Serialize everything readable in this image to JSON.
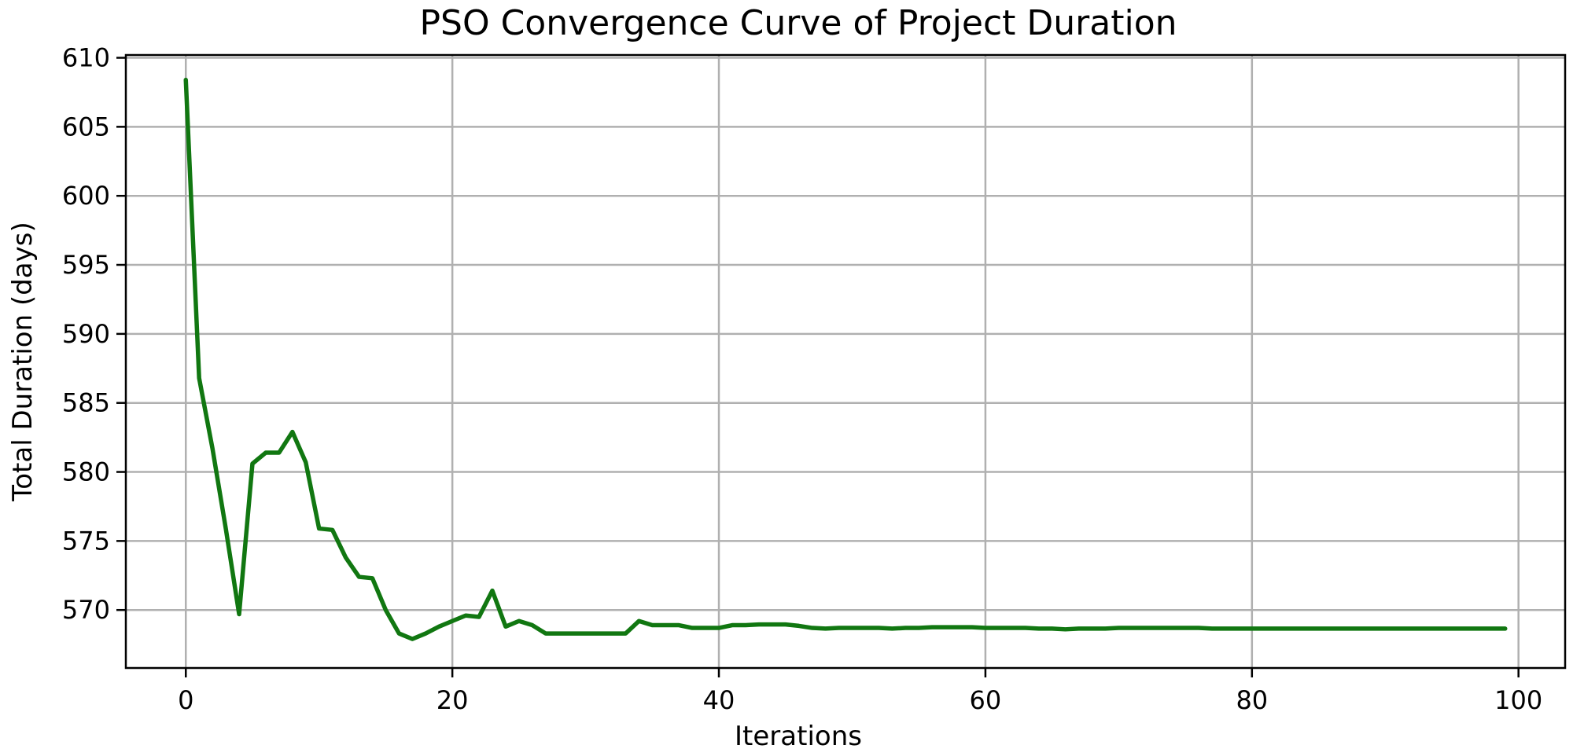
{
  "chart_data": {
    "type": "line",
    "title": "PSO Convergence Curve of Project Duration",
    "xlabel": "Iterations",
    "ylabel": "Total Duration (days)",
    "xlim": [
      -4.5,
      103.5
    ],
    "ylim": [
      565.8,
      610.2
    ],
    "xticks": [
      0,
      20,
      40,
      60,
      80,
      100
    ],
    "yticks": [
      570,
      575,
      580,
      585,
      590,
      595,
      600,
      605,
      610
    ],
    "grid": true,
    "line_color": "#117711",
    "x": [
      0,
      1,
      2,
      3,
      4,
      5,
      6,
      7,
      8,
      9,
      10,
      11,
      12,
      13,
      14,
      15,
      16,
      17,
      18,
      19,
      20,
      21,
      22,
      23,
      24,
      25,
      26,
      27,
      28,
      29,
      30,
      31,
      32,
      33,
      34,
      35,
      36,
      37,
      38,
      39,
      40,
      41,
      42,
      43,
      44,
      45,
      46,
      47,
      48,
      49,
      50,
      51,
      52,
      53,
      54,
      55,
      56,
      57,
      58,
      59,
      60,
      61,
      62,
      63,
      64,
      65,
      66,
      67,
      68,
      69,
      70,
      71,
      72,
      73,
      74,
      75,
      76,
      77,
      78,
      79,
      80,
      81,
      82,
      83,
      84,
      85,
      86,
      87,
      88,
      89,
      90,
      91,
      92,
      93,
      94,
      95,
      96,
      97,
      98,
      99
    ],
    "y": [
      608.4,
      586.8,
      581.7,
      575.9,
      569.7,
      580.6,
      581.4,
      581.4,
      582.9,
      580.7,
      575.9,
      575.8,
      573.8,
      572.4,
      572.3,
      570.0,
      568.3,
      567.9,
      568.3,
      568.8,
      569.2,
      569.6,
      569.5,
      571.4,
      568.8,
      569.2,
      568.9,
      568.3,
      568.3,
      568.3,
      568.3,
      568.3,
      568.3,
      568.3,
      569.2,
      568.9,
      568.9,
      568.9,
      568.7,
      568.7,
      568.7,
      568.9,
      568.9,
      568.95,
      568.95,
      568.95,
      568.85,
      568.7,
      568.65,
      568.7,
      568.7,
      568.7,
      568.7,
      568.65,
      568.7,
      568.7,
      568.75,
      568.75,
      568.75,
      568.75,
      568.7,
      568.7,
      568.7,
      568.7,
      568.65,
      568.65,
      568.6,
      568.65,
      568.65,
      568.65,
      568.7,
      568.7,
      568.7,
      568.7,
      568.7,
      568.7,
      568.7,
      568.65,
      568.65,
      568.65,
      568.65,
      568.65,
      568.65,
      568.65,
      568.65,
      568.65,
      568.65,
      568.65,
      568.65,
      568.65,
      568.65,
      568.65,
      568.65,
      568.65,
      568.65,
      568.65,
      568.65,
      568.65,
      568.65,
      568.65
    ]
  }
}
